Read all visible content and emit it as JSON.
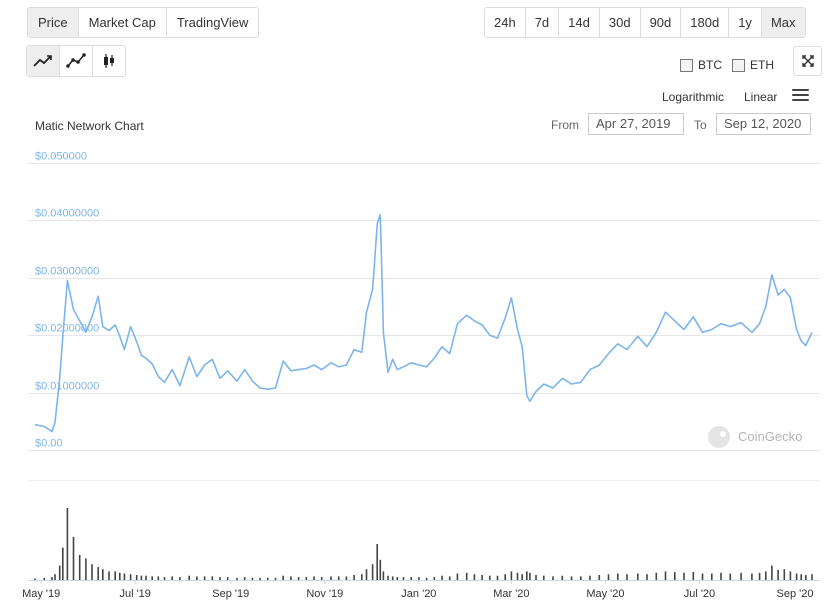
{
  "tabs": [
    "Price",
    "Market Cap",
    "TradingView"
  ],
  "ranges": [
    "24h",
    "7d",
    "14d",
    "30d",
    "90d",
    "180d",
    "1y",
    "Max"
  ],
  "chart_type_icons": [
    "line-chart-icon",
    "point-line-chart-icon",
    "candlestick-chart-icon"
  ],
  "compare": {
    "btc": "BTC",
    "eth": "ETH"
  },
  "scale": {
    "log": "Logarithmic",
    "linear": "Linear"
  },
  "title": "Matic Network Chart",
  "date_range": {
    "from_label": "From",
    "from": "Apr 27, 2019",
    "to_label": "To",
    "to": "Sep 12, 2020"
  },
  "watermark": "CoinGecko",
  "colors": {
    "line": "#7cb5ec",
    "axis_label": "#7cb5ec",
    "volume": "#444444",
    "grid": "#e6e6e6"
  },
  "chart_data": {
    "type": "line",
    "title": "Matic Network Chart",
    "x": [
      "2019-04-27",
      "2019-05-03",
      "2019-05-08",
      "2019-05-10",
      "2019-05-13",
      "2019-05-15",
      "2019-05-18",
      "2019-05-22",
      "2019-05-26",
      "2019-05-30",
      "2019-06-03",
      "2019-06-07",
      "2019-06-10",
      "2019-06-14",
      "2019-06-18",
      "2019-06-21",
      "2019-06-24",
      "2019-06-28",
      "2019-07-02",
      "2019-07-05",
      "2019-07-08",
      "2019-07-12",
      "2019-07-16",
      "2019-07-20",
      "2019-07-25",
      "2019-07-30",
      "2019-08-05",
      "2019-08-10",
      "2019-08-15",
      "2019-08-20",
      "2019-08-25",
      "2019-08-30",
      "2019-09-05",
      "2019-09-10",
      "2019-09-15",
      "2019-09-20",
      "2019-09-25",
      "2019-09-30",
      "2019-10-05",
      "2019-10-10",
      "2019-10-15",
      "2019-10-20",
      "2019-10-25",
      "2019-10-30",
      "2019-11-05",
      "2019-11-10",
      "2019-11-15",
      "2019-11-20",
      "2019-11-25",
      "2019-11-28",
      "2019-12-02",
      "2019-12-05",
      "2019-12-07",
      "2019-12-09",
      "2019-12-12",
      "2019-12-15",
      "2019-12-18",
      "2019-12-22",
      "2019-12-27",
      "2020-01-01",
      "2020-01-06",
      "2020-01-11",
      "2020-01-16",
      "2020-01-21",
      "2020-01-26",
      "2020-02-01",
      "2020-02-06",
      "2020-02-11",
      "2020-02-16",
      "2020-02-21",
      "2020-02-26",
      "2020-03-01",
      "2020-03-05",
      "2020-03-08",
      "2020-03-11",
      "2020-03-13",
      "2020-03-17",
      "2020-03-22",
      "2020-03-28",
      "2020-04-03",
      "2020-04-09",
      "2020-04-15",
      "2020-04-21",
      "2020-04-27",
      "2020-05-03",
      "2020-05-09",
      "2020-05-15",
      "2020-05-22",
      "2020-05-28",
      "2020-06-03",
      "2020-06-09",
      "2020-06-15",
      "2020-06-21",
      "2020-06-27",
      "2020-07-03",
      "2020-07-09",
      "2020-07-15",
      "2020-07-21",
      "2020-07-28",
      "2020-08-04",
      "2020-08-09",
      "2020-08-13",
      "2020-08-17",
      "2020-08-21",
      "2020-08-25",
      "2020-08-29",
      "2020-09-02",
      "2020-09-05",
      "2020-09-08",
      "2020-09-12"
    ],
    "values": [
      0.0044,
      0.0041,
      0.0032,
      0.0048,
      0.0125,
      0.0198,
      0.0295,
      0.0245,
      0.0225,
      0.0205,
      0.0232,
      0.0268,
      0.0215,
      0.0208,
      0.0218,
      0.0198,
      0.0175,
      0.0215,
      0.0188,
      0.0165,
      0.016,
      0.015,
      0.0128,
      0.0118,
      0.014,
      0.0112,
      0.0162,
      0.0128,
      0.0148,
      0.0158,
      0.0125,
      0.0138,
      0.012,
      0.014,
      0.012,
      0.0108,
      0.0106,
      0.0108,
      0.0155,
      0.0138,
      0.014,
      0.0142,
      0.0148,
      0.014,
      0.0152,
      0.0145,
      0.0148,
      0.0175,
      0.017,
      0.024,
      0.028,
      0.0395,
      0.041,
      0.0205,
      0.0135,
      0.0158,
      0.014,
      0.0145,
      0.0152,
      0.0148,
      0.0145,
      0.016,
      0.018,
      0.0168,
      0.022,
      0.0235,
      0.0225,
      0.0218,
      0.02,
      0.0195,
      0.023,
      0.0265,
      0.021,
      0.018,
      0.0095,
      0.0085,
      0.0102,
      0.0115,
      0.0108,
      0.0125,
      0.0115,
      0.0118,
      0.014,
      0.0148,
      0.0168,
      0.0185,
      0.0175,
      0.0198,
      0.018,
      0.0205,
      0.024,
      0.0225,
      0.021,
      0.0232,
      0.0205,
      0.021,
      0.022,
      0.0215,
      0.0222,
      0.0205,
      0.022,
      0.025,
      0.0305,
      0.027,
      0.028,
      0.0265,
      0.021,
      0.019,
      0.0182,
      0.0205
    ],
    "volumes": [
      0.02,
      0.03,
      0.04,
      0.08,
      0.2,
      0.45,
      1.0,
      0.6,
      0.35,
      0.3,
      0.22,
      0.18,
      0.15,
      0.12,
      0.12,
      0.1,
      0.09,
      0.08,
      0.07,
      0.06,
      0.06,
      0.05,
      0.05,
      0.04,
      0.05,
      0.04,
      0.06,
      0.05,
      0.05,
      0.05,
      0.04,
      0.04,
      0.03,
      0.04,
      0.03,
      0.03,
      0.03,
      0.03,
      0.06,
      0.05,
      0.04,
      0.04,
      0.05,
      0.04,
      0.05,
      0.05,
      0.05,
      0.07,
      0.08,
      0.15,
      0.22,
      0.5,
      0.28,
      0.12,
      0.06,
      0.05,
      0.04,
      0.04,
      0.04,
      0.04,
      0.03,
      0.04,
      0.06,
      0.05,
      0.09,
      0.1,
      0.08,
      0.07,
      0.06,
      0.06,
      0.08,
      0.12,
      0.1,
      0.08,
      0.12,
      0.1,
      0.07,
      0.06,
      0.05,
      0.06,
      0.05,
      0.05,
      0.06,
      0.07,
      0.08,
      0.09,
      0.08,
      0.09,
      0.08,
      0.1,
      0.12,
      0.11,
      0.1,
      0.11,
      0.09,
      0.09,
      0.1,
      0.09,
      0.1,
      0.09,
      0.1,
      0.12,
      0.2,
      0.14,
      0.15,
      0.12,
      0.09,
      0.08,
      0.07,
      0.08
    ],
    "y_ticks": [
      {
        "value": 0,
        "label": "$0.00"
      },
      {
        "value": 0.01,
        "label": "$0.01000000"
      },
      {
        "value": 0.02,
        "label": "$0.02000000"
      },
      {
        "value": 0.03,
        "label": "$0.03000000"
      },
      {
        "value": 0.04,
        "label": "$0.04000000"
      },
      {
        "value": 0.05,
        "label": "$0.050000"
      }
    ],
    "ylim": [
      0,
      0.05
    ],
    "x_ticks": [
      {
        "date": "2019-05-01",
        "label": "May '19"
      },
      {
        "date": "2019-07-01",
        "label": "Jul '19"
      },
      {
        "date": "2019-09-01",
        "label": "Sep '19"
      },
      {
        "date": "2019-11-01",
        "label": "Nov '19"
      },
      {
        "date": "2020-01-01",
        "label": "Jan '20"
      },
      {
        "date": "2020-03-01",
        "label": "Mar '20"
      },
      {
        "date": "2020-05-01",
        "label": "May '20"
      },
      {
        "date": "2020-07-01",
        "label": "Jul '20"
      },
      {
        "date": "2020-09-01",
        "label": "Sep '20"
      }
    ],
    "xlim": [
      "2019-04-27",
      "2020-09-12"
    ],
    "grid": true,
    "legend": "none"
  }
}
